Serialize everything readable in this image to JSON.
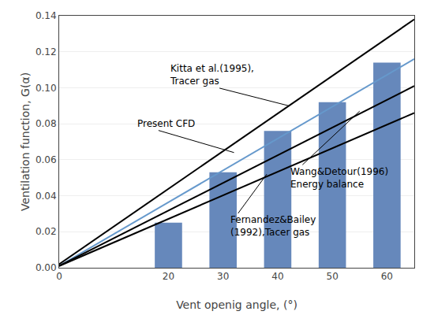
{
  "chart_data": {
    "type": "bar",
    "xlabel": "Vent openig angle, (°)",
    "ylabel": "Ventilation function, G(α)",
    "series": [
      {
        "type": "bar",
        "x": [
          20,
          30,
          40,
          50,
          60
        ],
        "values": [
          0.025,
          0.053,
          0.076,
          0.092,
          0.114
        ],
        "color": "#6688BB"
      },
      {
        "type": "line",
        "x": [
          0,
          65
        ],
        "values": [
          0.002,
          0.138
        ],
        "color": "black"
      },
      {
        "type": "line",
        "x": [
          0,
          65
        ],
        "values": [
          0.001,
          0.116
        ],
        "color": "#6699CC"
      },
      {
        "type": "line",
        "x": [
          0,
          65
        ],
        "values": [
          0.001,
          0.101
        ],
        "color": "black"
      },
      {
        "type": "line",
        "x": [
          0,
          65
        ],
        "values": [
          0.001,
          0.086
        ],
        "color": "black"
      }
    ],
    "annotations": [
      {
        "text": "Kitta et al.(1995),\nTracer gas",
        "x": 42,
        "y": 0.09,
        "text_x": 20,
        "text_y": 0.107
      },
      {
        "text": "Present CFD",
        "x": 32,
        "y": 0.064,
        "text_x": 14,
        "text_y": 0.08
      },
      {
        "text": "Fernandez&Bailey\n(1992),Tacer gas",
        "x": 38,
        "y": 0.052,
        "text_x": 31,
        "text_y": 0.023
      },
      {
        "text": "Wang&Detour(1996)\nEnergy balance",
        "x": 55,
        "y": 0.087,
        "text_x": 42,
        "text_y": 0.05
      }
    ],
    "xlim": [
      0,
      65
    ],
    "ylim": [
      0,
      0.14
    ],
    "xticks": [
      0,
      20,
      30,
      40,
      50,
      60
    ],
    "yticks": [
      {
        "value": 0,
        "label": "0.00"
      },
      0.02,
      0.04,
      0.06,
      0.08,
      {
        "value": 0.1,
        "label": "0.10"
      },
      0.12,
      0.14
    ],
    "grid": "y"
  }
}
